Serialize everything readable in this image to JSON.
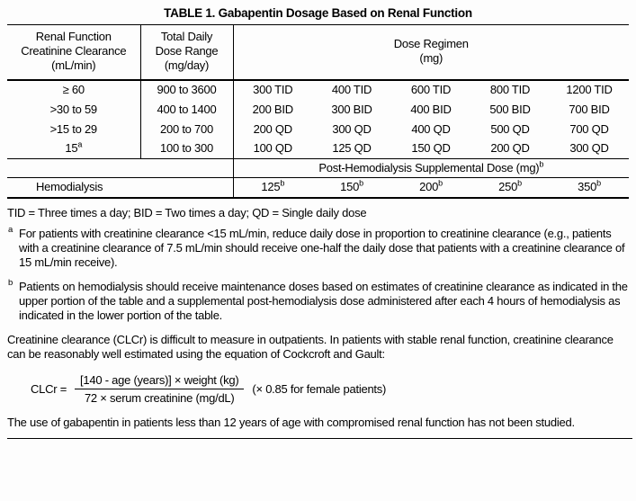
{
  "colors": {
    "text": "#000000",
    "background": "#fdfdfd",
    "rule": "#000000"
  },
  "title": "TABLE 1. Gabapentin Dosage Based on Renal Function",
  "table": {
    "header": {
      "renal": "Renal Function\nCreatinine Clearance\n(mL/min)",
      "dose_range": "Total Daily\nDose Range\n(mg/day)",
      "regimen": "Dose Regimen\n(mg)"
    },
    "rows": [
      {
        "clearance": "≥ 60",
        "range": "900 to 3600",
        "doses": [
          "300 TID",
          "400 TID",
          "600 TID",
          "800 TID",
          "1200 TID"
        ]
      },
      {
        "clearance": ">30 to 59",
        "range": "400 to 1400",
        "doses": [
          "200 BID",
          "300 BID",
          "400 BID",
          "500 BID",
          "700 BID"
        ]
      },
      {
        "clearance": ">15 to 29",
        "range": "200 to 700",
        "doses": [
          "200 QD",
          "300 QD",
          "400 QD",
          "500 QD",
          "700 QD"
        ]
      },
      {
        "clearance": "15",
        "clearance_sup": "a",
        "range": "100 to 300",
        "doses": [
          "100 QD",
          "125 QD",
          "150 QD",
          "200 QD",
          "300 QD"
        ]
      }
    ],
    "posthemo": {
      "text": "Post-Hemodialysis Supplemental Dose (mg)",
      "sup": "b"
    },
    "hemo": {
      "label": "Hemodialysis",
      "sup": "b",
      "doses": [
        "125",
        "150",
        "200",
        "250",
        "350"
      ]
    }
  },
  "footnotes": {
    "abbrev": "TID = Three times a day; BID = Two times a day; QD = Single daily dose",
    "a": {
      "marker": "a",
      "text": "For patients with creatinine clearance <15 mL/min, reduce daily dose in proportion to creatinine clearance (e.g., patients with a creatinine clearance of 7.5 mL/min should receive one-half the daily dose that patients with a creatinine clearance of 15 mL/min receive)."
    },
    "b": {
      "marker": "b",
      "text": "Patients on hemodialysis should receive maintenance doses based on estimates of creatinine clearance as indicated in the upper portion of the table and a supplemental post-hemodialysis dose administered after each 4 hours of hemodialysis as indicated in the lower portion of the table."
    }
  },
  "paragraphs": {
    "clcr_intro": "Creatinine clearance (CLCr) is difficult to measure in outpatients. In patients with stable renal function, creatinine clearance can be reasonably well estimated using the equation of Cockcroft and Gault:",
    "not_studied": "The use of gabapentin in patients less than 12 years of age with compromised renal function has not been studied."
  },
  "formula": {
    "lhs": "CLCr =",
    "numerator": "[140 - age (years)] × weight (kg)",
    "denominator": "72 × serum creatinine (mg/dL)",
    "suffix": "(× 0.85 for female patients)"
  }
}
